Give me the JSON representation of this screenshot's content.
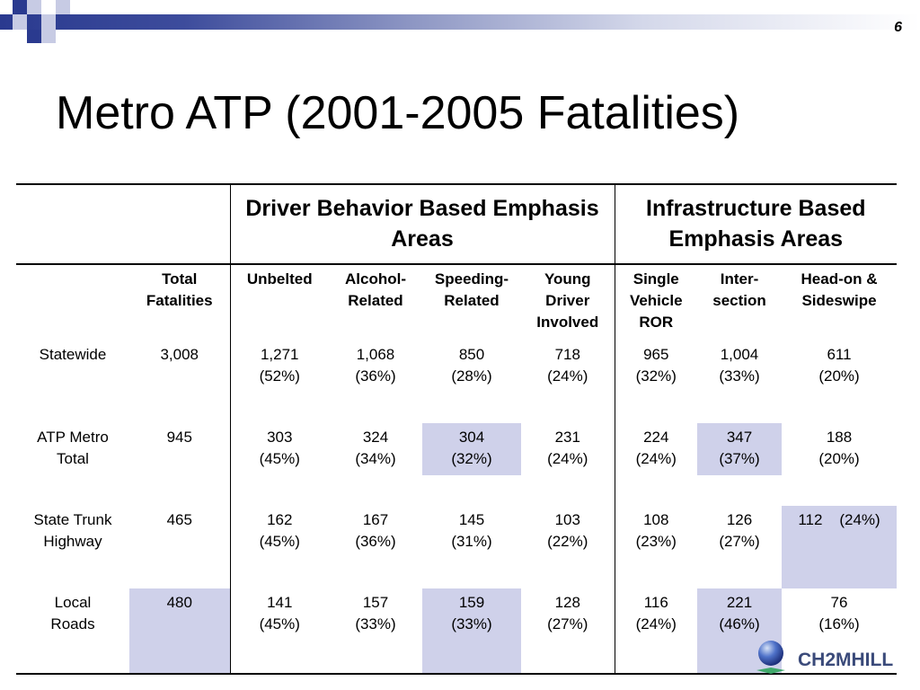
{
  "slide_number": "6",
  "title": "Metro ATP (2001-2005 Fatalities)",
  "header_groups": {
    "driver": "Driver Behavior Based Emphasis Areas",
    "infrastructure": "Infrastructure Based Emphasis Areas"
  },
  "columns": {
    "total": "Total Fatalities",
    "unbelted": "Unbelted",
    "alcohol": "Alcohol-Related",
    "speeding": "Speeding-Related",
    "young": "Young Driver Involved",
    "single": "Single Vehicle ROR",
    "intersection": "Inter-section",
    "headon": "Head-on & Sideswipe"
  },
  "rows": [
    {
      "label": "Statewide",
      "total": "3,008",
      "unbelted": [
        "1,271",
        "(52%)"
      ],
      "alcohol": [
        "1,068",
        "(36%)"
      ],
      "speeding": [
        "850",
        "(28%)"
      ],
      "young": [
        "718",
        "(24%)"
      ],
      "single": [
        "965",
        "(32%)"
      ],
      "intersection": [
        "1,004",
        "(33%)"
      ],
      "headon": [
        "611",
        "(20%)"
      ]
    },
    {
      "label": "ATP Metro Total",
      "total": "945",
      "unbelted": [
        "303",
        "(45%)"
      ],
      "alcohol": [
        "324",
        "(34%)"
      ],
      "speeding": [
        "304",
        "(32%)"
      ],
      "young": [
        "231",
        "(24%)"
      ],
      "single": [
        "224",
        "(24%)"
      ],
      "intersection": [
        "347",
        "(37%)"
      ],
      "headon": [
        "188",
        "(20%)"
      ]
    },
    {
      "label": "State Trunk Highway",
      "total": "465",
      "unbelted": [
        "162",
        "(45%)"
      ],
      "alcohol": [
        "167",
        "(36%)"
      ],
      "speeding": [
        "145",
        "(31%)"
      ],
      "young": [
        "103",
        "(22%)"
      ],
      "single": [
        "108",
        "(23%)"
      ],
      "intersection": [
        "126",
        "(27%)"
      ],
      "headon": [
        "112    (24%)"
      ]
    },
    {
      "label": "Local Roads",
      "total": "480",
      "unbelted": [
        "141",
        "(45%)"
      ],
      "alcohol": [
        "157",
        "(33%)"
      ],
      "speeding": [
        "159",
        "(33%)"
      ],
      "young": [
        "128",
        "(27%)"
      ],
      "single": [
        "116",
        "(24%)"
      ],
      "intersection": [
        "221",
        "(46%)"
      ],
      "headon": [
        "76",
        "(16%)"
      ]
    }
  ],
  "logo_text": "CH2MHILL",
  "colors": {
    "highlight": "#cfd1ea",
    "banner_dark": "#2a3a8f",
    "logo_text": "#3a4a7a"
  }
}
